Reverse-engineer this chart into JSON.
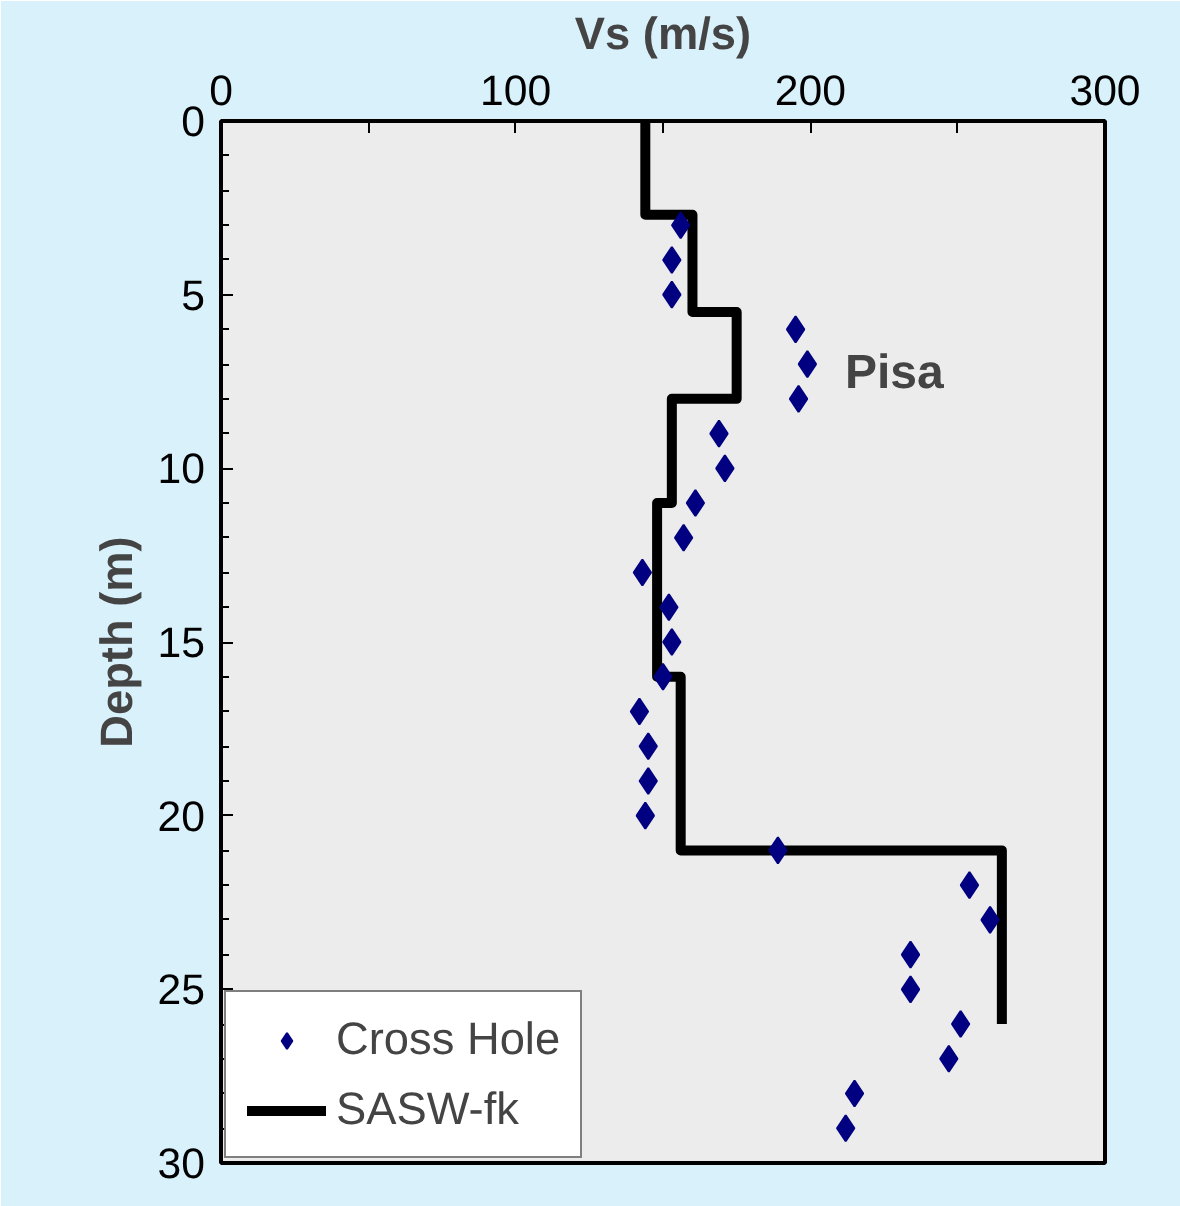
{
  "chart_data": {
    "type": "scatter",
    "xlabel": "Vs (m/s)",
    "ylabel": "Depth (m)",
    "xlim": [
      0,
      300
    ],
    "xticks": [
      0,
      {
        "value": 50,
        "label": null
      },
      100,
      {
        "value": 150,
        "label": null
      },
      200,
      {
        "value": 250,
        "label": null
      },
      300
    ],
    "ylim": [
      30,
      0
    ],
    "yticks": [
      0,
      5,
      10,
      15,
      20,
      25,
      30
    ],
    "annotations": [
      "Pisa"
    ],
    "grid": false,
    "legend": "bottom left",
    "series": [
      {
        "name": "Cross Hole",
        "marker": "diamond",
        "color": "#000080",
        "x": [
          156,
          153,
          153,
          195,
          199,
          196,
          169,
          171,
          161,
          157,
          143,
          152,
          153,
          150,
          142,
          145,
          145,
          144,
          189,
          254,
          261,
          234,
          234,
          251,
          247,
          215,
          212
        ],
        "values": [
          3,
          4,
          5,
          6,
          7,
          8,
          9,
          10,
          11,
          12,
          13,
          14,
          15,
          16,
          17,
          18,
          19,
          20,
          21,
          22,
          23,
          24,
          25,
          26,
          27,
          28,
          29
        ]
      },
      {
        "name": "SASW-fk",
        "type": "line",
        "color": "#000000",
        "line_style": "solid",
        "x": [
          144,
          144,
          160,
          160,
          175,
          175,
          153,
          153,
          148,
          148,
          156,
          156,
          265,
          265
        ],
        "values": [
          0,
          2.7,
          2.7,
          5.5,
          5.5,
          8,
          8,
          11,
          11,
          16,
          16,
          21,
          21,
          26
        ]
      }
    ]
  }
}
